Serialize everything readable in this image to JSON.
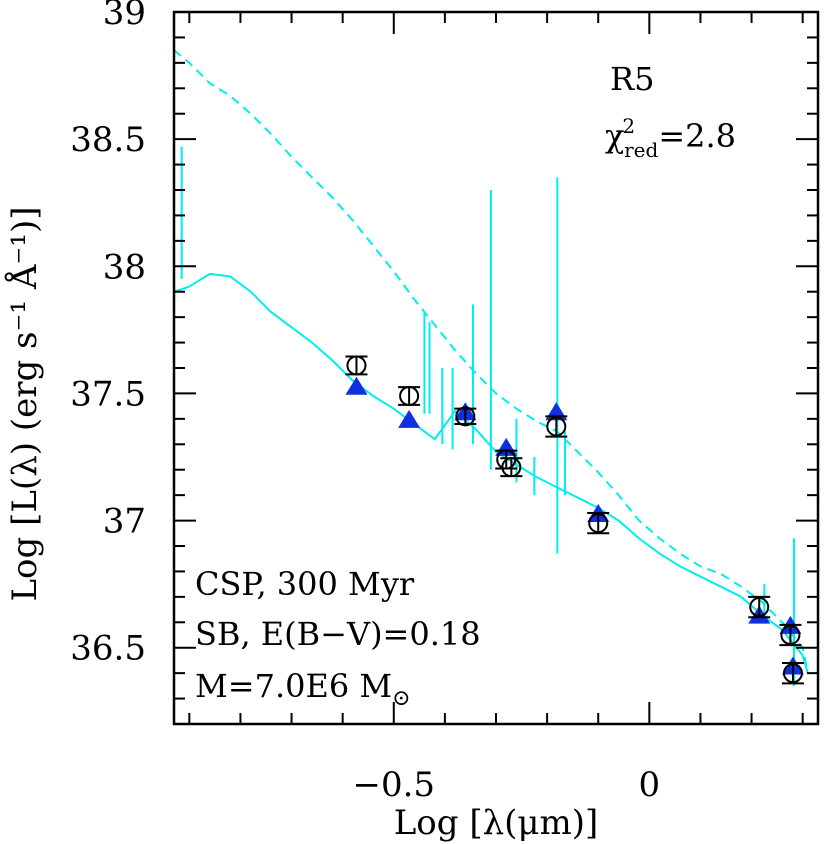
{
  "chart_data": {
    "type": "scatter",
    "title": "",
    "xlabel": "Log [λ(μm)]",
    "ylabel": "Log [L(λ) (erg s⁻¹ Å⁻¹)]",
    "xlim": [
      -0.93,
      0.33
    ],
    "ylim": [
      36.2,
      39.0
    ],
    "x_ticks": [
      -0.5,
      0
    ],
    "x_tick_labels": [
      "−0.5",
      "0"
    ],
    "y_ticks": [
      36.5,
      37,
      37.5,
      38,
      38.5,
      39
    ],
    "y_tick_labels": [
      "36.5",
      "37",
      "37.5",
      "38",
      "38.5",
      "39"
    ],
    "region_label": "R5",
    "chi2_label": {
      "symbol": "χ",
      "sup": "2",
      "sub": "red",
      "value": "=2.8"
    },
    "annotations": [
      "CSP, 300 Myr",
      "SB, E(B−V)=0.18"
    ],
    "mass_label": {
      "prefix": "M=7.0E6 M",
      "symbol": "⊙"
    },
    "colors": {
      "model": "#00eeee",
      "triangles": "#1030e0",
      "observed": "#000000",
      "frame": "#000000"
    },
    "series": [
      {
        "name": "model SED (solid)",
        "style": "solid",
        "x": [
          -0.93,
          -0.9,
          -0.86,
          -0.82,
          -0.78,
          -0.74,
          -0.7,
          -0.66,
          -0.62,
          -0.58,
          -0.54,
          -0.5,
          -0.46,
          -0.42,
          -0.38,
          -0.34,
          -0.3,
          -0.26,
          -0.22,
          -0.18,
          -0.14,
          -0.1,
          -0.06,
          -0.02,
          0.02,
          0.06,
          0.1,
          0.14,
          0.18,
          0.22,
          0.26,
          0.3,
          0.31
        ],
        "y": [
          37.9,
          37.92,
          37.97,
          37.96,
          37.9,
          37.82,
          37.76,
          37.7,
          37.63,
          37.55,
          37.49,
          37.44,
          37.38,
          37.32,
          37.43,
          37.36,
          37.27,
          37.22,
          37.17,
          37.13,
          37.09,
          37.05,
          37.0,
          36.93,
          36.87,
          36.82,
          36.78,
          36.74,
          36.7,
          36.63,
          36.57,
          36.47,
          36.4
        ]
      },
      {
        "name": "model SED (dashed)",
        "style": "dashed",
        "x": [
          -0.93,
          -0.9,
          -0.86,
          -0.82,
          -0.78,
          -0.74,
          -0.7,
          -0.66,
          -0.62,
          -0.58,
          -0.54,
          -0.5,
          -0.46,
          -0.42,
          -0.38,
          -0.34,
          -0.3,
          -0.26,
          -0.22,
          -0.18,
          -0.14,
          -0.1,
          -0.06,
          -0.02,
          0.02,
          0.06,
          0.1,
          0.14,
          0.18,
          0.22,
          0.26,
          0.3,
          0.31
        ],
        "y": [
          38.85,
          38.8,
          38.72,
          38.67,
          38.6,
          38.52,
          38.43,
          38.35,
          38.27,
          38.18,
          38.08,
          37.98,
          37.87,
          37.77,
          37.67,
          37.58,
          37.5,
          37.44,
          37.39,
          37.35,
          37.27,
          37.19,
          37.1,
          37.0,
          36.93,
          36.87,
          36.82,
          36.79,
          36.74,
          36.68,
          36.6,
          36.5,
          36.4
        ]
      },
      {
        "name": "model photometry",
        "marker": "triangle",
        "x": [
          -0.573,
          -0.47,
          -0.36,
          -0.28,
          -0.182,
          -0.1,
          0.215,
          0.276,
          0.281
        ],
        "y": [
          37.53,
          37.4,
          37.43,
          37.29,
          37.43,
          37.03,
          36.63,
          36.59,
          36.43
        ]
      },
      {
        "name": "observed",
        "marker": "circle",
        "x": [
          -0.573,
          -0.47,
          -0.36,
          -0.28,
          -0.27,
          -0.182,
          -0.1,
          0.215,
          0.276,
          0.281
        ],
        "y": [
          37.61,
          37.49,
          37.41,
          37.24,
          37.21,
          37.37,
          36.99,
          36.66,
          36.55,
          36.4
        ],
        "yerr": [
          0.035,
          0.035,
          0.03,
          0.035,
          0.035,
          0.04,
          0.04,
          0.04,
          0.04,
          0.04
        ]
      }
    ],
    "spikes": [
      {
        "x": -0.915,
        "y0": 37.95,
        "y1": 38.47
      },
      {
        "x": -0.44,
        "y0": 37.42,
        "y1": 37.82
      },
      {
        "x": -0.43,
        "y0": 37.42,
        "y1": 37.78
      },
      {
        "x": -0.405,
        "y0": 37.3,
        "y1": 37.6
      },
      {
        "x": -0.385,
        "y0": 37.28,
        "y1": 37.6
      },
      {
        "x": -0.345,
        "y0": 37.3,
        "y1": 37.85
      },
      {
        "x": -0.31,
        "y0": 37.2,
        "y1": 38.3
      },
      {
        "x": -0.26,
        "y0": 37.15,
        "y1": 37.4
      },
      {
        "x": -0.225,
        "y0": 37.1,
        "y1": 37.25
      },
      {
        "x": -0.18,
        "y0": 36.87,
        "y1": 38.35
      },
      {
        "x": -0.165,
        "y0": 37.1,
        "y1": 37.35
      },
      {
        "x": 0.225,
        "y0": 36.6,
        "y1": 36.75
      },
      {
        "x": 0.283,
        "y0": 36.35,
        "y1": 36.93
      }
    ]
  }
}
